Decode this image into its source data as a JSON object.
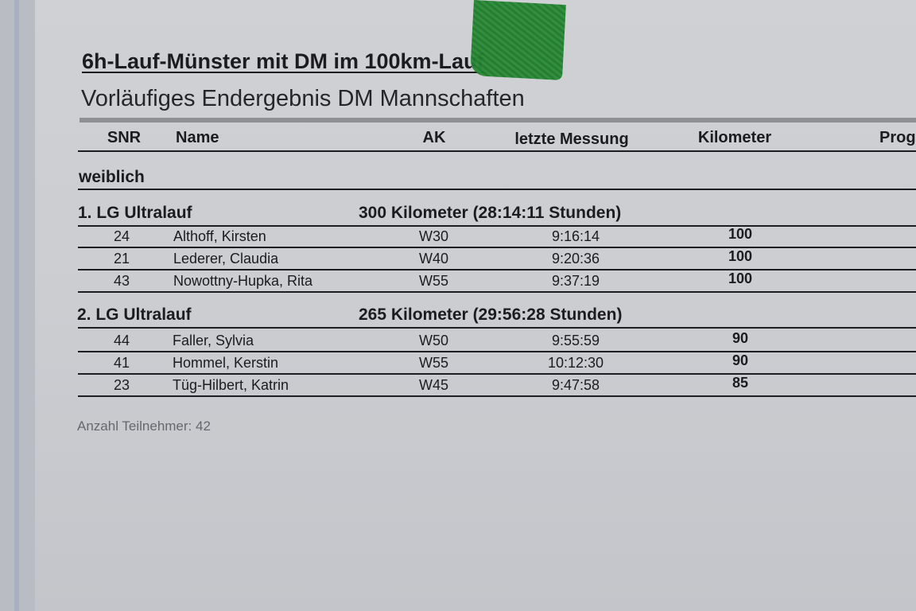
{
  "document": {
    "title": "6h-Lauf-Münster mit DM im 100km-Lauf",
    "subtitle": "Vorläufiges Endergebnis DM Mannschaften",
    "columns": [
      "SNR",
      "Name",
      "AK",
      "letzte Messung",
      "Kilometer",
      "Prog"
    ],
    "category": "weiblich",
    "teams": [
      {
        "label": "1. LG Ultralauf",
        "summary": "300 Kilometer (28:14:11 Stunden)",
        "rows": [
          {
            "snr": "24",
            "name": "Althoff, Kirsten",
            "ak": "W30",
            "time": "9:16:14",
            "km": "100"
          },
          {
            "snr": "21",
            "name": "Lederer, Claudia",
            "ak": "W40",
            "time": "9:20:36",
            "km": "100"
          },
          {
            "snr": "43",
            "name": "Nowottny-Hupka, Rita",
            "ak": "W55",
            "time": "9:37:19",
            "km": "100"
          }
        ]
      },
      {
        "label": "2. LG Ultralauf",
        "summary": "265 Kilometer (29:56:28 Stunden)",
        "rows": [
          {
            "snr": "44",
            "name": "Faller, Sylvia",
            "ak": "W50",
            "time": "9:55:59",
            "km": "90"
          },
          {
            "snr": "41",
            "name": "Hommel, Kerstin",
            "ak": "W55",
            "time": "10:12:30",
            "km": "90"
          },
          {
            "snr": "23",
            "name": "Tüg-Hilbert, Katrin",
            "ak": "W45",
            "time": "9:47:58",
            "km": "85"
          }
        ]
      }
    ],
    "footer": "Anzahl Teilnehmer: 42"
  },
  "colors": {
    "paper": "#cbcdd1",
    "tape": "#2c8c38",
    "text": "#1c1c20"
  }
}
